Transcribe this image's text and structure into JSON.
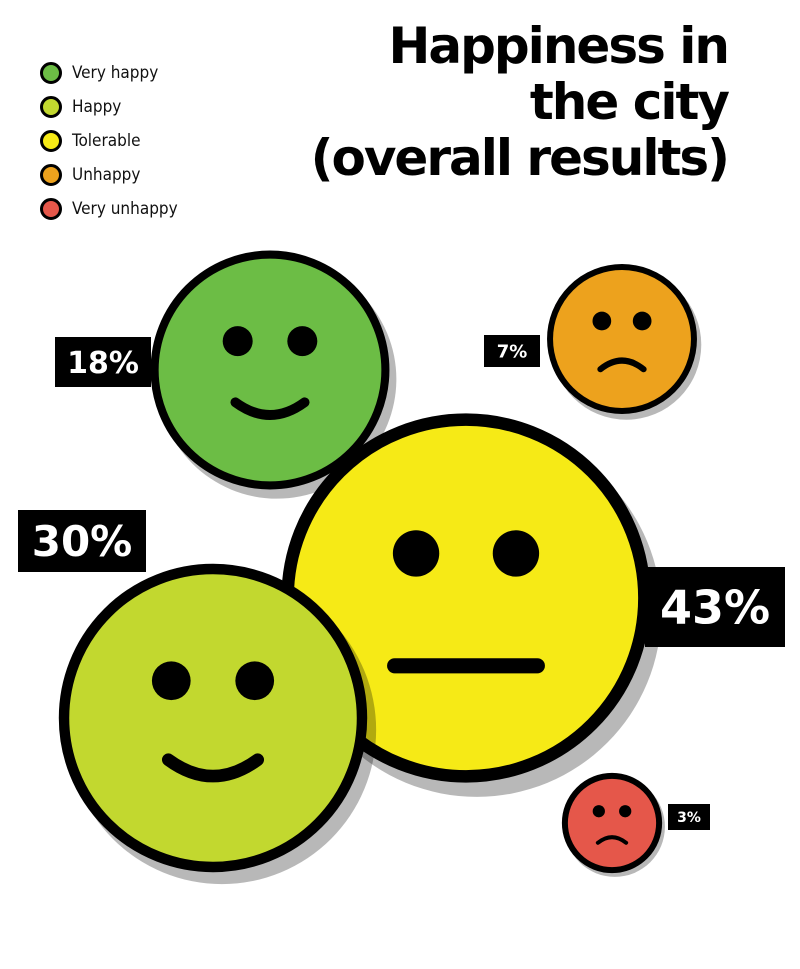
{
  "title_lines": [
    "Happiness in",
    "the city",
    "(overall results)"
  ],
  "legend": [
    {
      "label": "Very happy",
      "color": "#6cbd45"
    },
    {
      "label": "Happy",
      "color": "#c2d82f"
    },
    {
      "label": "Tolerable",
      "color": "#f6ea16"
    },
    {
      "label": "Unhappy",
      "color": "#eda21d"
    },
    {
      "label": "Very unhappy",
      "color": "#e5574a"
    }
  ],
  "chart_data": {
    "type": "pie",
    "title": "Happiness in the city (overall results)",
    "categories": [
      "Very happy",
      "Happy",
      "Tolerable",
      "Unhappy",
      "Very unhappy"
    ],
    "values": [
      18,
      30,
      43,
      7,
      3
    ],
    "value_labels": [
      "18%",
      "30%",
      "43%",
      "7%",
      "3%"
    ],
    "unit": "%",
    "legend_position": "top-left",
    "colors": [
      "#6cbd45",
      "#c2d82f",
      "#f6ea16",
      "#eda21d",
      "#e5574a"
    ],
    "faces": [
      "smile",
      "smile",
      "neutral",
      "frown",
      "frown"
    ]
  }
}
